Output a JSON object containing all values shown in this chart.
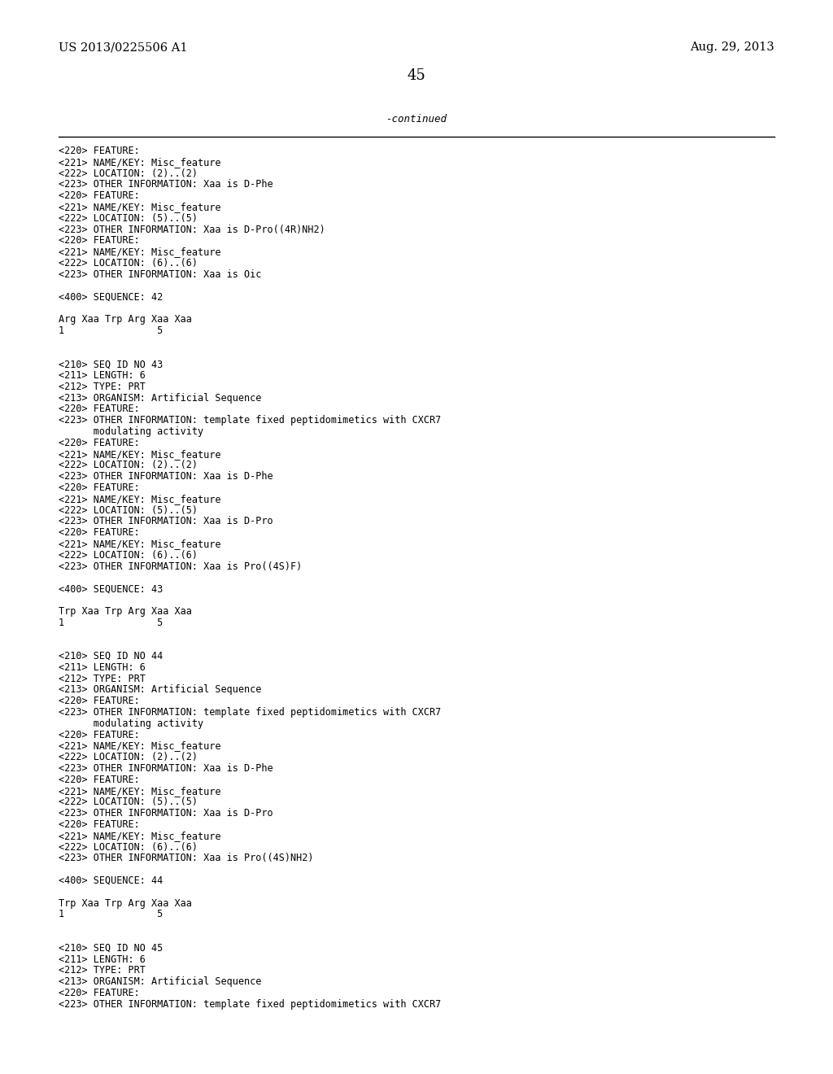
{
  "header_left": "US 2013/0225506 A1",
  "header_right": "Aug. 29, 2013",
  "page_number": "45",
  "continued_label": "-continued",
  "background_color": "#ffffff",
  "text_color": "#000000",
  "font_size_header": 10.5,
  "font_size_body": 8.5,
  "font_size_page": 13,
  "font_size_continued": 9,
  "body_lines": [
    "<220> FEATURE:",
    "<221> NAME/KEY: Misc_feature",
    "<222> LOCATION: (2)..(2)",
    "<223> OTHER INFORMATION: Xaa is D-Phe",
    "<220> FEATURE:",
    "<221> NAME/KEY: Misc_feature",
    "<222> LOCATION: (5)..(5)",
    "<223> OTHER INFORMATION: Xaa is D-Pro((4R)NH2)",
    "<220> FEATURE:",
    "<221> NAME/KEY: Misc_feature",
    "<222> LOCATION: (6)..(6)",
    "<223> OTHER INFORMATION: Xaa is Oic",
    "",
    "<400> SEQUENCE: 42",
    "",
    "Arg Xaa Trp Arg Xaa Xaa",
    "1                5",
    "",
    "",
    "<210> SEQ ID NO 43",
    "<211> LENGTH: 6",
    "<212> TYPE: PRT",
    "<213> ORGANISM: Artificial Sequence",
    "<220> FEATURE:",
    "<223> OTHER INFORMATION: template fixed peptidomimetics with CXCR7",
    "      modulating activity",
    "<220> FEATURE:",
    "<221> NAME/KEY: Misc_feature",
    "<222> LOCATION: (2)..(2)",
    "<223> OTHER INFORMATION: Xaa is D-Phe",
    "<220> FEATURE:",
    "<221> NAME/KEY: Misc_feature",
    "<222> LOCATION: (5)..(5)",
    "<223> OTHER INFORMATION: Xaa is D-Pro",
    "<220> FEATURE:",
    "<221> NAME/KEY: Misc_feature",
    "<222> LOCATION: (6)..(6)",
    "<223> OTHER INFORMATION: Xaa is Pro((4S)F)",
    "",
    "<400> SEQUENCE: 43",
    "",
    "Trp Xaa Trp Arg Xaa Xaa",
    "1                5",
    "",
    "",
    "<210> SEQ ID NO 44",
    "<211> LENGTH: 6",
    "<212> TYPE: PRT",
    "<213> ORGANISM: Artificial Sequence",
    "<220> FEATURE:",
    "<223> OTHER INFORMATION: template fixed peptidomimetics with CXCR7",
    "      modulating activity",
    "<220> FEATURE:",
    "<221> NAME/KEY: Misc_feature",
    "<222> LOCATION: (2)..(2)",
    "<223> OTHER INFORMATION: Xaa is D-Phe",
    "<220> FEATURE:",
    "<221> NAME/KEY: Misc_feature",
    "<222> LOCATION: (5)..(5)",
    "<223> OTHER INFORMATION: Xaa is D-Pro",
    "<220> FEATURE:",
    "<221> NAME/KEY: Misc_feature",
    "<222> LOCATION: (6)..(6)",
    "<223> OTHER INFORMATION: Xaa is Pro((4S)NH2)",
    "",
    "<400> SEQUENCE: 44",
    "",
    "Trp Xaa Trp Arg Xaa Xaa",
    "1                5",
    "",
    "",
    "<210> SEQ ID NO 45",
    "<211> LENGTH: 6",
    "<212> TYPE: PRT",
    "<213> ORGANISM: Artificial Sequence",
    "<220> FEATURE:",
    "<223> OTHER INFORMATION: template fixed peptidomimetics with CXCR7"
  ]
}
